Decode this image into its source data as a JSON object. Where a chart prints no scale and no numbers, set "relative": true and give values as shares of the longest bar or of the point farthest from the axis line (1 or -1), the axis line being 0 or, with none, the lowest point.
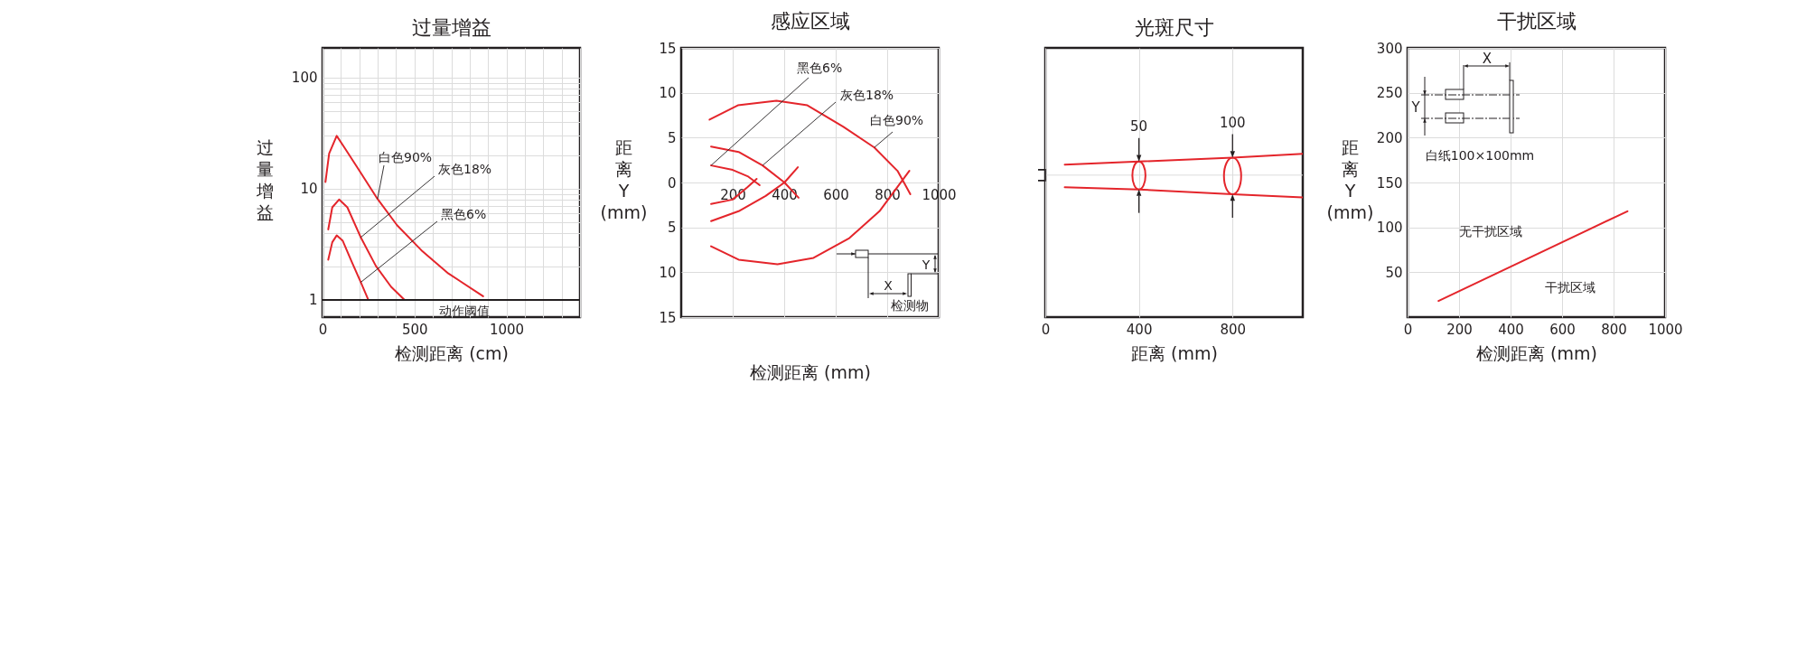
{
  "chart_data": [
    {
      "type": "line",
      "title": "过量增益",
      "xlabel": "检测距离 (cm)",
      "ylabel": "过量增益",
      "log": true,
      "xlim": [
        0,
        1400
      ],
      "xticks": [
        0,
        {
          "value": 100,
          "label": null
        },
        {
          "value": 200,
          "label": null
        },
        {
          "value": 300,
          "label": null
        },
        {
          "value": 400,
          "label": null
        },
        500,
        {
          "value": 600,
          "label": null
        },
        {
          "value": 700,
          "label": null
        },
        {
          "value": 800,
          "label": null
        },
        {
          "value": 900,
          "label": null
        },
        1000,
        {
          "value": 1100,
          "label": null
        },
        {
          "value": 1200,
          "label": null
        },
        {
          "value": 1300,
          "label": null
        },
        {
          "value": 1400,
          "label": null
        }
      ],
      "ylim": [
        0.7,
        185
      ],
      "yticks": [
        1,
        {
          "value": 2,
          "label": null
        },
        {
          "value": 3,
          "label": null
        },
        {
          "value": 4,
          "label": null
        },
        {
          "value": 5,
          "label": null
        },
        {
          "value": 6,
          "label": null
        },
        {
          "value": 7,
          "label": null
        },
        {
          "value": 8,
          "label": null
        },
        {
          "value": 9,
          "label": null
        },
        10,
        {
          "value": 20,
          "label": null
        },
        {
          "value": 30,
          "label": null
        },
        {
          "value": 40,
          "label": null
        },
        {
          "value": 50,
          "label": null
        },
        {
          "value": 60,
          "label": null
        },
        {
          "value": 70,
          "label": null
        },
        {
          "value": 80,
          "label": null
        },
        {
          "value": 90,
          "label": null
        },
        100
      ],
      "grid": true,
      "ref_lines": [
        {
          "axis": "y",
          "value": 1,
          "label": "动作阈值",
          "color": "#231f20"
        }
      ],
      "series": [
        {
          "name": "白色90%",
          "color": "#e4252b",
          "x": [
            16,
            36,
            77,
            118,
            192,
            299,
            405,
            537,
            684,
            873
          ],
          "values": [
            11.5,
            20.8,
            29.9,
            23.6,
            15.3,
            8.1,
            4.7,
            2.8,
            1.73,
            1.08
          ]
        },
        {
          "name": "灰色18%",
          "color": "#e4252b",
          "x": [
            31,
            53,
            90,
            135,
            208,
            290,
            373,
            446
          ],
          "values": [
            4.3,
            6.8,
            8.0,
            6.8,
            3.65,
            2.02,
            1.31,
            1.0
          ]
        },
        {
          "name": "黑色6%",
          "color": "#e4252b",
          "x": [
            31,
            53,
            77,
            110,
            159,
            208,
            249
          ],
          "values": [
            2.3,
            3.3,
            3.8,
            3.4,
            2.2,
            1.44,
            1.0
          ]
        }
      ]
    },
    {
      "type": "line",
      "title": "感应区域",
      "xlabel": "检测距离 (mm)",
      "ylabel": "距离 Y (mm)",
      "xlim": [
        0,
        1000
      ],
      "xticks": [
        200,
        400,
        600,
        800,
        1000
      ],
      "ylim": [
        -15,
        15
      ],
      "yticks": [
        {
          "value": -15,
          "label": "15"
        },
        {
          "value": -10,
          "label": "10"
        },
        {
          "value": -5,
          "label": "5"
        },
        0,
        5,
        10,
        15
      ],
      "grid": true,
      "annotations": [
        "X",
        "Y",
        "检测物"
      ],
      "series": [
        {
          "name": "白色90%",
          "color": "#e4252b",
          "x": [
            110,
            220,
            370,
            490,
            630,
            750,
            840,
            890,
            null,
            116,
            223,
            374,
            514,
            653,
            770,
            840,
            886
          ],
          "values": [
            7,
            8.6,
            9.1,
            8.6,
            6.2,
            3.9,
            1.3,
            -1.3,
            null,
            -7.1,
            -8.6,
            -9.1,
            -8.4,
            -6.2,
            -3.2,
            -0.5,
            1.3
          ]
        },
        {
          "name": "灰色18%",
          "color": "#e4252b",
          "x": [
            116,
            223,
            316,
            401,
            456,
            null,
            116,
            223,
            328,
            401,
            453
          ],
          "values": [
            4.0,
            3.4,
            1.9,
            0,
            -1.7,
            null,
            -4.3,
            -3.2,
            -1.5,
            0,
            1.7
          ]
        },
        {
          "name": "黑色6%",
          "color": "#e4252b",
          "x": [
            116,
            200,
            258,
            305,
            null,
            116,
            200,
            258,
            293
          ],
          "values": [
            1.9,
            1.4,
            0.7,
            -0.3,
            null,
            -2.4,
            -1.9,
            -0.5,
            0.4
          ]
        }
      ]
    },
    {
      "type": "line",
      "title": "光斑尺寸",
      "xlabel": "距离 (mm)",
      "xlim": [
        0,
        1100
      ],
      "xticks": [
        0,
        400,
        800
      ],
      "grid": "x",
      "relative": true,
      "annotations": [
        {
          "text": "50",
          "x": 400,
          "y": 0.61
        },
        {
          "text": "100",
          "x": 800,
          "y": 0.78
        }
      ],
      "series": [
        {
          "color": "#e4252b",
          "x": [
            83,
            400,
            800,
            1100
          ],
          "values": [
            0.47,
            0.61,
            0.78,
            0.95
          ]
        },
        {
          "color": "#e4252b",
          "x": [
            83,
            400,
            800,
            1100
          ],
          "values": [
            -0.54,
            -0.64,
            -0.86,
            -1
          ]
        }
      ]
    },
    {
      "type": "line",
      "title": "干扰区域",
      "xlabel": "检测距离 (mm)",
      "ylabel": "距离 Y (mm)",
      "xlim": [
        0,
        1000
      ],
      "xticks": [
        0,
        200,
        400,
        600,
        800,
        1000
      ],
      "ylim": [
        0,
        300
      ],
      "yticks": [
        50,
        100,
        150,
        200,
        250,
        300
      ],
      "grid": true,
      "annotations": [
        "无干扰区域",
        "干扰区域",
        "X",
        "Y",
        "白纸100×100mm"
      ],
      "series": [
        {
          "color": "#e4252b",
          "x": [
            120,
            854
          ],
          "values": [
            18,
            118
          ]
        }
      ]
    }
  ]
}
